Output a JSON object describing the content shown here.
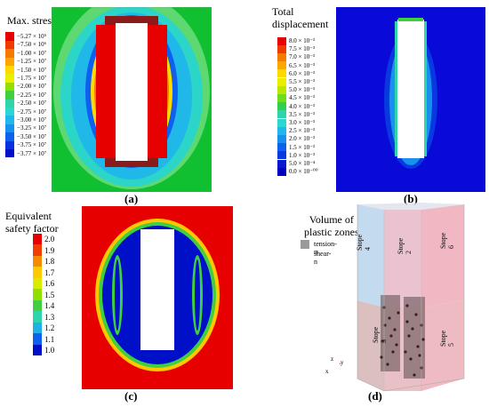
{
  "panel_a": {
    "caption": "(a)",
    "legend_title": "Max. stress",
    "labels": [
      "−5.27 × 10⁵",
      "−7.50 × 10⁶",
      "−1.00 × 10⁷",
      "−1.25 × 10⁷",
      "−1.50 × 10⁷",
      "−1.75 × 10⁷",
      "−2.00 × 10⁷",
      "−2.25 × 10⁷",
      "−2.50 × 10⁷",
      "−2.75 × 10⁷",
      "−3.00 × 10⁷",
      "−3.25 × 10⁷",
      "−3.50 × 10⁷",
      "−3.75 × 10⁷",
      "−3.77 × 10⁷"
    ],
    "colors": [
      "#e60000",
      "#f03a00",
      "#f57a00",
      "#ffa500",
      "#ffd800",
      "#e8ef00",
      "#8fe000",
      "#3fcf3f",
      "#2fd4a8",
      "#2bd6d6",
      "#20b8e8",
      "#1890ee",
      "#1060f0",
      "#0830e0",
      "#0010c8"
    ]
  },
  "panel_b": {
    "caption": "(b)",
    "legend_title": "Total displacement",
    "labels": [
      "8.0 × 10⁻³",
      "7.5 × 10⁻³",
      "7.0 × 10⁻³",
      "6.5 × 10⁻³",
      "6.0 × 10⁻³",
      "5.5 × 10⁻³",
      "5.0 × 10⁻³",
      "4.5 × 10⁻³",
      "4.0 × 10⁻³",
      "3.5 × 10⁻³",
      "3.0 × 10⁻³",
      "2.5 × 10⁻³",
      "2.0 × 10⁻³",
      "1.5 × 10⁻³",
      "1.0 × 10⁻³",
      "5.0 × 10⁻⁴",
      "0.0 × 10⁻⁰⁰"
    ],
    "colors": [
      "#e60000",
      "#f03a00",
      "#f57a00",
      "#ffa500",
      "#ffd800",
      "#e8ef00",
      "#b8e800",
      "#70dc20",
      "#2fd050",
      "#2fd4a8",
      "#2bd6d6",
      "#20b8e8",
      "#1890ee",
      "#1060f0",
      "#0838e0",
      "#0818d0",
      "#0000c0"
    ]
  },
  "panel_c": {
    "caption": "(c)",
    "legend_title_line1": "Equivalent",
    "legend_title_line2": "safety factor",
    "labels": [
      "2.0",
      "1.9",
      "1.8",
      "1.7",
      "1.6",
      "1.5",
      "1.4",
      "1.3",
      "1.2",
      "1.1",
      "1.0"
    ],
    "colors": [
      "#e60000",
      "#f04000",
      "#f58a00",
      "#ffc800",
      "#d8ec00",
      "#8fe000",
      "#3fcf3f",
      "#2fd4a8",
      "#20b0e8",
      "#1060f0",
      "#0010c8"
    ]
  },
  "panel_d": {
    "caption": "(d)",
    "legend_title_line1": "Volume of",
    "legend_title_line2": "plastic zones",
    "legend_items": [
      "tension-n",
      "shear-n"
    ],
    "stopes": [
      "Stope 4",
      "Stope 2",
      "Stope 6",
      "Stope 3",
      "Stope 5"
    ],
    "axes": [
      "z",
      "y",
      "x"
    ]
  }
}
